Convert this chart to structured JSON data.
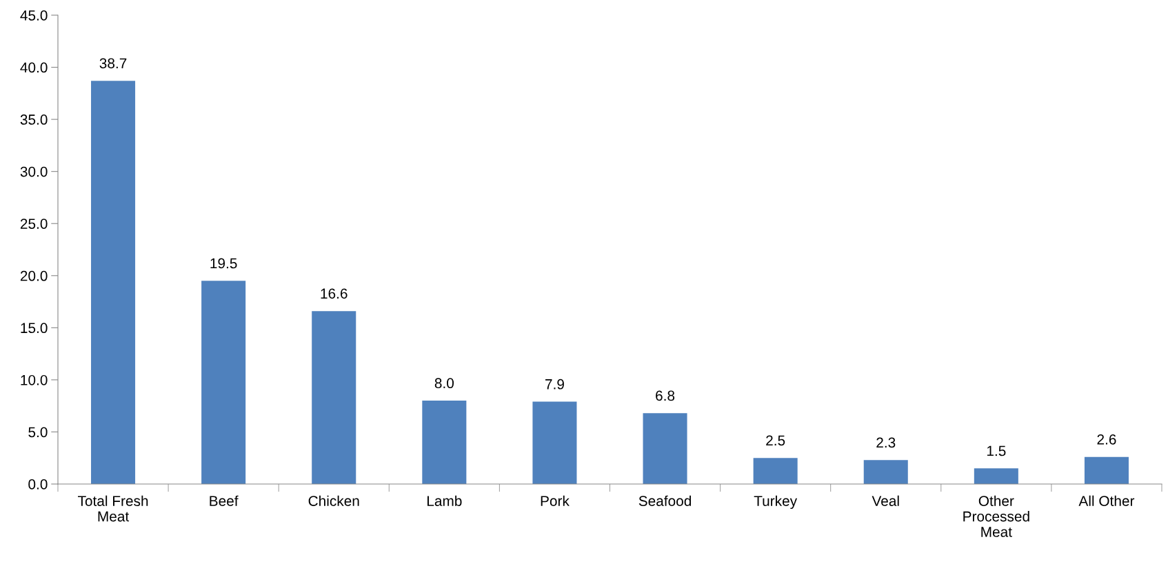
{
  "chart_data": {
    "type": "bar",
    "categories": [
      "Total Fresh Meat",
      "Beef",
      "Chicken",
      "Lamb",
      "Pork",
      "Seafood",
      "Turkey",
      "Veal",
      "Other Processed Meat",
      "All Other"
    ],
    "values": [
      38.7,
      19.5,
      16.6,
      8.0,
      7.9,
      6.8,
      2.5,
      2.3,
      1.5,
      2.6
    ],
    "value_labels": [
      "38.7",
      "19.5",
      "16.6",
      "8.0",
      "7.9",
      "6.8",
      "2.5",
      "2.3",
      "1.5",
      "2.6"
    ],
    "color": "#4f81bd",
    "ylim": [
      0,
      45
    ],
    "yticks": [
      {
        "value": 0,
        "label": "0.0"
      },
      {
        "value": 5,
        "label": "5.0"
      },
      {
        "value": 10,
        "label": "10.0"
      },
      {
        "value": 15,
        "label": "15.0"
      },
      {
        "value": 20,
        "label": "20.0"
      },
      {
        "value": 25,
        "label": "25.0"
      },
      {
        "value": 30,
        "label": "30.0"
      },
      {
        "value": 35,
        "label": "35.0"
      },
      {
        "value": 40,
        "label": "40.0"
      },
      {
        "value": 45,
        "label": "45.0"
      }
    ],
    "grid": false,
    "legend": false
  }
}
